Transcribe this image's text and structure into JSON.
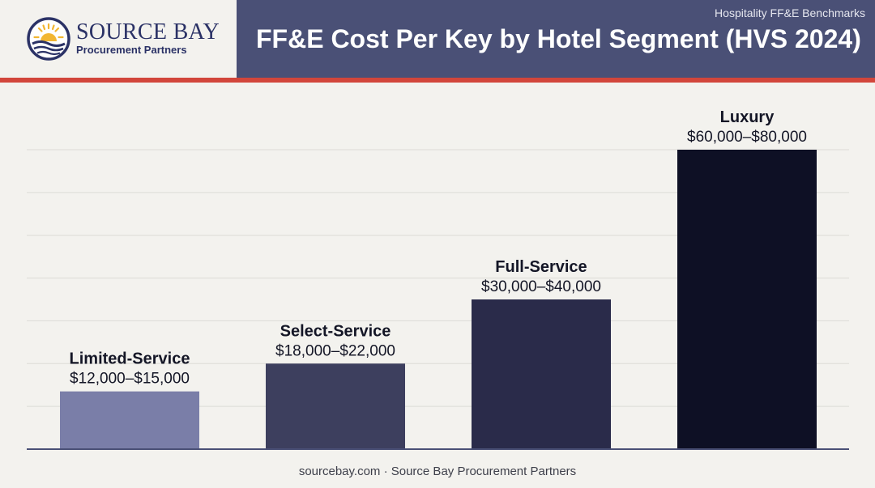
{
  "brand": {
    "name": "SOURCE BAY",
    "tagline": "Procurement Partners",
    "icon": "sun-over-waves-logo"
  },
  "header": {
    "super_label": "Hospitality FF&E Benchmarks",
    "title": "FF&E Cost Per Key by Hotel Segment (HVS 2024)"
  },
  "colors": {
    "title_band": "#4a5076",
    "accent_rule": "#d2463b",
    "background": "#f3f2ee"
  },
  "chart_data": {
    "type": "bar",
    "title": "FF&E Cost Per Key by Hotel Segment (HVS 2024)",
    "categories": [
      "Limited-Service",
      "Select-Service",
      "Full-Service",
      "Luxury"
    ],
    "values": [
      13500,
      20000,
      35000,
      70000
    ],
    "ranges": [
      [
        12000,
        15000
      ],
      [
        18000,
        22000
      ],
      [
        30000,
        40000
      ],
      [
        60000,
        80000
      ]
    ],
    "value_labels": [
      "$12,000–$15,000",
      "$18,000–$22,000",
      "$30,000–$40,000",
      "$60,000–$80,000"
    ],
    "bar_colors": [
      "#7a7ea8",
      "#3d3f5e",
      "#2a2b4a",
      "#0e1025"
    ],
    "ylim": [
      0,
      70000
    ],
    "xlabel": "",
    "ylabel": "",
    "grid": true,
    "legend": "none"
  },
  "footer": {
    "text": "sourcebay.com · Source Bay Procurement Partners"
  }
}
